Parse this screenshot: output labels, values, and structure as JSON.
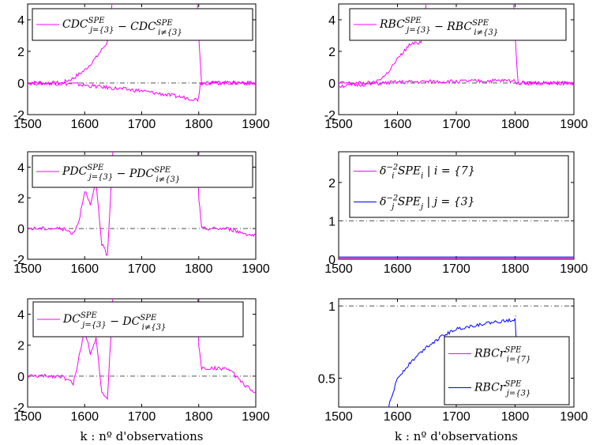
{
  "x_axis_label": "k : nº d'observations",
  "colors": {
    "magenta": "#ff00ff",
    "blue": "#0000ff",
    "ref": "#555555"
  },
  "chart_data": [
    {
      "id": "cdc",
      "type": "line",
      "xlim": [
        1500,
        1900
      ],
      "ylim": [
        -2,
        5
      ],
      "xticks": [
        1500,
        1600,
        1700,
        1800,
        1900
      ],
      "yticks": [
        -2,
        0,
        2,
        4
      ],
      "ref_line": 0,
      "legend_placement": "top-right",
      "series": [
        {
          "name": "CDC_{j={3}}^{SPE} − CDC_{i≠{3}}^{SPE}",
          "legend": [
            "CDC",
            "SPE",
            "j={3}",
            " − CDC",
            "SPE",
            "i≠{3}"
          ],
          "color": "#ff00ff",
          "x": [
            1500,
            1560,
            1580,
            1600,
            1620,
            1640,
            1650,
            1700,
            1780,
            1797,
            1800,
            1805,
            1900
          ],
          "y": [
            0,
            0,
            0.3,
            0.8,
            1.6,
            2.6,
            5.5,
            5.5,
            5.5,
            5.5,
            3,
            0,
            0
          ]
        },
        {
          "name": "",
          "color": "#ff00ff",
          "x": [
            1500,
            1580,
            1600,
            1700,
            1798,
            1800,
            1803,
            1900
          ],
          "y": [
            0,
            -0.05,
            -0.15,
            -0.5,
            -1.05,
            -0.8,
            0,
            0
          ]
        }
      ]
    },
    {
      "id": "rbc",
      "type": "line",
      "xlim": [
        1500,
        1900
      ],
      "ylim": [
        -2,
        5
      ],
      "xticks": [
        1500,
        1600,
        1700,
        1800,
        1900
      ],
      "yticks": [
        -2,
        0,
        2,
        4
      ],
      "ref_line": 0,
      "legend_placement": "top-right",
      "series": [
        {
          "name": "RBC_{j={3}}^{SPE} − RBC_{i≠{3}}^{SPE}",
          "legend": [
            "RBC",
            "SPE",
            "j={3}",
            " − RBC",
            "SPE",
            "i≠{3}"
          ],
          "color": "#ff00ff",
          "x": [
            1500,
            1560,
            1580,
            1600,
            1620,
            1640,
            1650,
            1700,
            1780,
            1797,
            1800,
            1805,
            1900
          ],
          "y": [
            0,
            0,
            0.5,
            1.5,
            2.4,
            2.6,
            5.5,
            5.5,
            5.5,
            5.5,
            3,
            0,
            0
          ]
        },
        {
          "name": "",
          "color": "#ff00ff",
          "x": [
            1500,
            1600,
            1700,
            1800,
            1805,
            1900
          ],
          "y": [
            -0.2,
            0.05,
            0.1,
            0.15,
            0,
            0
          ]
        }
      ]
    },
    {
      "id": "pdc",
      "type": "line",
      "xlim": [
        1500,
        1900
      ],
      "ylim": [
        -2,
        5
      ],
      "xticks": [
        1500,
        1600,
        1700,
        1800,
        1900
      ],
      "yticks": [
        -2,
        0,
        2,
        4
      ],
      "ref_line": 0,
      "legend_placement": "top-right",
      "series": [
        {
          "name": "PDC_{j={3}}^{SPE} − PDC_{i≠{3}}^{SPE}",
          "legend": [
            "PDC",
            "SPE",
            "j={3}",
            " − PDC",
            "SPE",
            "i≠{3}"
          ],
          "color": "#ff00ff",
          "x": [
            1500,
            1560,
            1580,
            1590,
            1600,
            1610,
            1620,
            1630,
            1640,
            1650,
            1700,
            1798,
            1800,
            1805,
            1850,
            1900
          ],
          "y": [
            0,
            0,
            -0.3,
            0.5,
            2.5,
            1.5,
            3,
            -1,
            -1.8,
            5.5,
            5.5,
            5.5,
            2,
            0,
            0,
            -0.5
          ]
        }
      ]
    },
    {
      "id": "spe",
      "type": "line",
      "xlim": [
        1500,
        1900
      ],
      "ylim": [
        0,
        2.8
      ],
      "xticks": [
        1500,
        1600,
        1700,
        1800,
        1900
      ],
      "yticks": [
        0,
        1,
        2
      ],
      "ref_line": 1,
      "legend_placement": "top-right",
      "series": [
        {
          "name": "δ_i^{−2} SPE_i | i = {7}",
          "legend": [
            "δ",
            "−2",
            "i",
            " SPE",
            "i",
            "|  i = {7}"
          ],
          "color": "#ff00ff",
          "x": [
            1500,
            1900
          ],
          "y": [
            0.03,
            0.03
          ]
        },
        {
          "name": "δ_j^{−2} SPE_j | j = {3}",
          "legend": [
            "δ",
            "−2",
            "j",
            " SPE",
            "j",
            "|  j = {3}"
          ],
          "color": "#0000ff",
          "x": [
            1500,
            1900
          ],
          "y": [
            0.06,
            0.06
          ]
        }
      ]
    },
    {
      "id": "dc",
      "type": "line",
      "xlim": [
        1500,
        1900
      ],
      "ylim": [
        -2,
        5
      ],
      "xticks": [
        1500,
        1600,
        1700,
        1800,
        1900
      ],
      "yticks": [
        -2,
        0,
        2,
        4
      ],
      "ref_line": 0,
      "legend_placement": "top-right",
      "series": [
        {
          "name": "DC_{j={3}}^{SPE} − DC_{i≠{3}}^{SPE}",
          "legend": [
            "DC",
            "SPE",
            "j={3}",
            " − DC",
            "SPE",
            "i≠{3}"
          ],
          "color": "#ff00ff",
          "x": [
            1500,
            1560,
            1580,
            1590,
            1600,
            1610,
            1620,
            1630,
            1640,
            1650,
            1700,
            1798,
            1800,
            1805,
            1850,
            1900
          ],
          "y": [
            0,
            0,
            -0.5,
            1.2,
            3,
            1.5,
            2.5,
            -1,
            -1.6,
            5.5,
            5.5,
            5.5,
            2,
            0.5,
            0.5,
            -1.2
          ]
        }
      ]
    },
    {
      "id": "rbcr",
      "type": "line",
      "xlim": [
        1500,
        1900
      ],
      "ylim": [
        0.3,
        1.05
      ],
      "xticks": [
        1500,
        1600,
        1700,
        1800,
        1900
      ],
      "yticks": [
        0.5,
        1
      ],
      "ref_line": 1,
      "legend_placement": "bottom-right",
      "series": [
        {
          "name": "RBCr_{i={7}}^{SPE}",
          "legend": [
            "RBCr",
            "SPE",
            "i={7}"
          ],
          "color": "#ff00ff",
          "x": [
            1800,
            1802
          ],
          "y": [
            0.93,
            0.93
          ]
        },
        {
          "name": "RBCr_{j={3}}^{SPE}",
          "legend": [
            "RBCr",
            "SPE",
            "j={3}"
          ],
          "color": "#0000ff",
          "x": [
            1585,
            1600,
            1620,
            1650,
            1680,
            1700,
            1750,
            1790,
            1800,
            1802
          ],
          "y": [
            0.3,
            0.5,
            0.6,
            0.72,
            0.8,
            0.84,
            0.88,
            0.9,
            0.91,
            0.75
          ]
        }
      ]
    }
  ]
}
